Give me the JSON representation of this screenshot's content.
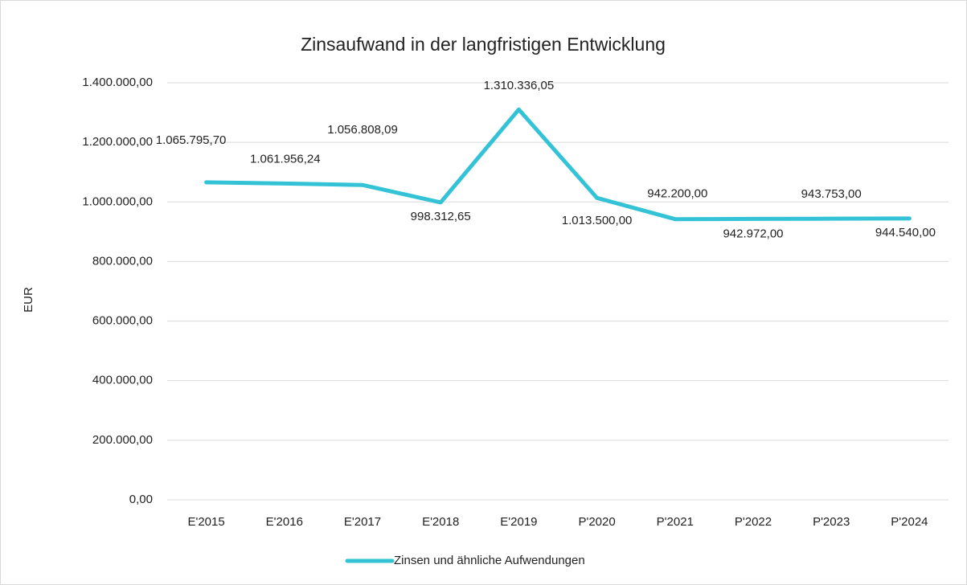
{
  "chart_data": {
    "type": "line",
    "title": "Zinsaufwand in der langfristigen Entwicklung",
    "y_label": "EUR",
    "categories": [
      "E'2015",
      "E'2016",
      "E'2017",
      "E'2018",
      "E'2019",
      "P'2020",
      "P'2021",
      "P'2022",
      "P'2023",
      "P'2024"
    ],
    "series": [
      {
        "name": "Zinsen und ähnliche Aufwendungen",
        "color": "#34c3d6",
        "values": [
          1065795.7,
          1061956.24,
          1056808.09,
          998312.65,
          1310336.05,
          1013500.0,
          942200.0,
          942972.0,
          943753.0,
          944540.0
        ],
        "value_labels": [
          "1.065.795,70",
          "1.061.956,24",
          "1.056.808,09",
          "998.312,65",
          "1.310.336,05",
          "1.013.500,00",
          "942.200,00",
          "942.972,00",
          "943.753,00",
          "944.540,00"
        ]
      }
    ],
    "ylim": [
      0,
      1400000
    ],
    "yticks": [
      {
        "value": 0,
        "label": "0,00"
      },
      {
        "value": 200000,
        "label": "200.000,00"
      },
      {
        "value": 400000,
        "label": "400.000,00"
      },
      {
        "value": 600000,
        "label": "600.000,00"
      },
      {
        "value": 800000,
        "label": "800.000,00"
      },
      {
        "value": 1000000,
        "label": "1.000.000,00"
      },
      {
        "value": 1200000,
        "label": "1.200.000,00"
      },
      {
        "value": 1400000,
        "label": "1.400.000,00"
      }
    ],
    "grid": true,
    "legend": "bottom"
  }
}
